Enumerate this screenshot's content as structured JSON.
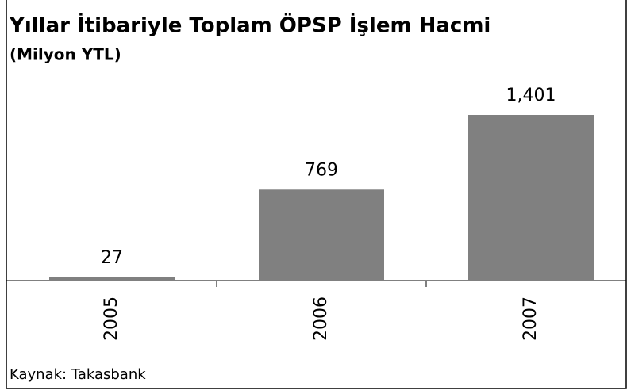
{
  "chart_data": {
    "type": "bar",
    "title": "Yıllar İtibariyle Toplam ÖPSP İşlem Hacmi",
    "subtitle": "(Milyon YTL)",
    "source": "Kaynak: Takasbank",
    "categories": [
      "2005",
      "2006",
      "2007"
    ],
    "values": [
      27,
      769,
      1401
    ],
    "value_labels": [
      "27",
      "769",
      "1,401"
    ],
    "color": "#808080"
  }
}
